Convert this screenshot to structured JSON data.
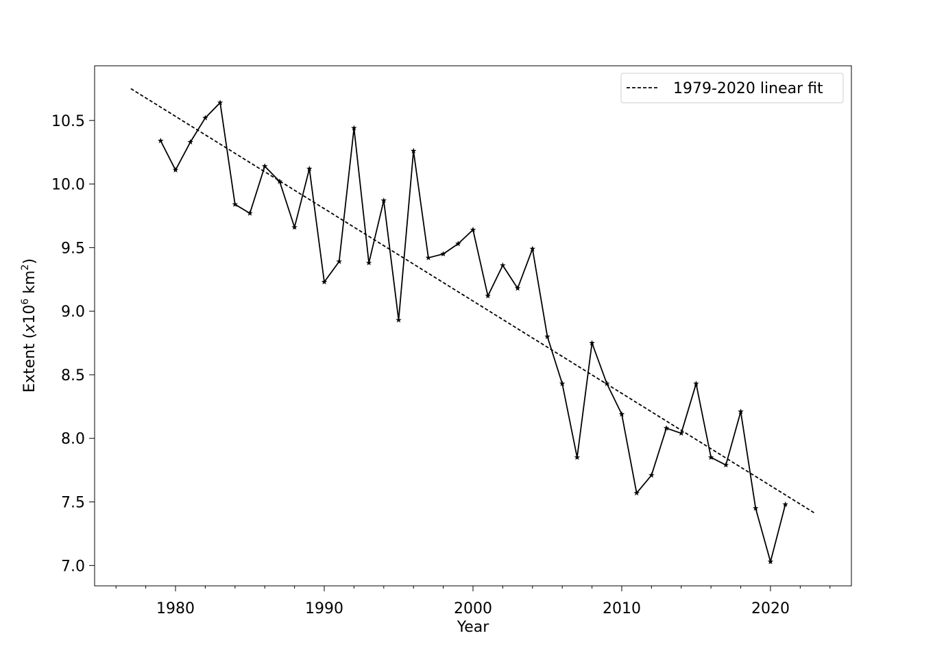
{
  "chart_data": {
    "type": "line",
    "title": "",
    "xlabel": "Year",
    "ylabel_main": "Extent (",
    "ylabel_x": "x",
    "ylabel_base": "10",
    "ylabel_exp1": "6",
    "ylabel_unit": " km",
    "ylabel_exp2": "2",
    "ylabel_close": ")",
    "xlim": [
      1974.56,
      2025.44
    ],
    "ylim": [
      6.84,
      10.93
    ],
    "xticks": [
      1980,
      1990,
      2000,
      2010,
      2020
    ],
    "xminor_step": 2,
    "yticks": [
      "7.0",
      "7.5",
      "8.0",
      "8.5",
      "9.0",
      "9.5",
      "10.0",
      "10.5"
    ],
    "grid": false,
    "legend_placement": "top-right",
    "series": [
      {
        "style": "solid line with star markers",
        "color": "#000000",
        "x": [
          1979,
          1980,
          1981,
          1982,
          1983,
          1984,
          1985,
          1986,
          1987,
          1988,
          1989,
          1990,
          1991,
          1992,
          1993,
          1994,
          1995,
          1996,
          1997,
          1998,
          1999,
          2000,
          2001,
          2002,
          2003,
          2004,
          2005,
          2006,
          2007,
          2008,
          2009,
          2010,
          2011,
          2012,
          2013,
          2014,
          2015,
          2016,
          2017,
          2018,
          2019,
          2020,
          2021
        ],
        "y": [
          10.34,
          10.11,
          10.33,
          10.52,
          10.64,
          9.84,
          9.77,
          10.14,
          10.02,
          9.66,
          10.12,
          9.23,
          9.39,
          10.44,
          9.38,
          9.87,
          8.93,
          10.26,
          9.42,
          9.45,
          9.53,
          9.64,
          9.12,
          9.36,
          9.18,
          9.49,
          8.8,
          8.43,
          7.85,
          8.75,
          8.43,
          8.19,
          7.57,
          7.71,
          8.08,
          8.04,
          8.43,
          7.85,
          7.79,
          8.21,
          7.45,
          7.03,
          7.48
        ]
      },
      {
        "name": "1979-2020 linear fit",
        "style": "dashed",
        "color": "#000000",
        "x": [
          1977,
          2023
        ],
        "y": [
          10.75,
          7.41
        ]
      }
    ]
  }
}
